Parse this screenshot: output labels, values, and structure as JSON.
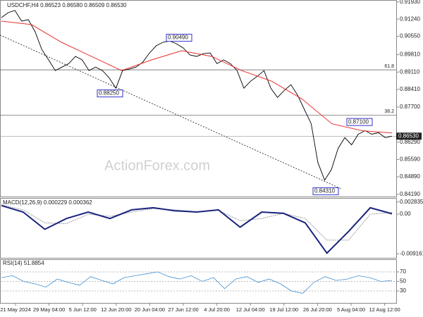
{
  "chart_data": {
    "type": "line",
    "title": "USDCHF,H4 0.86523 0.86580 0.86509 0.86530",
    "watermark": "ActionForex.com",
    "x_labels": [
      "21 May 2024",
      "29 May 04:00",
      "5 Jun 12:00",
      "12 Jun 20:00",
      "20 Jun 04:00",
      "27 Jun 12:00",
      "4 Jul 20:00",
      "12 Jul 04:00",
      "19 Jul 12:00",
      "26 Jul 20:00",
      "5 Aug 04:00",
      "12 Aug 12:00"
    ],
    "ylim": [
      0.841,
      0.9201
    ],
    "yticks": [
      {
        "value": 0.9193,
        "label": "0.91930"
      },
      {
        "value": 0.9124,
        "label": "0.91240"
      },
      {
        "value": 0.9055,
        "label": "0.90550"
      },
      {
        "value": 0.8981,
        "label": "0.89810"
      },
      {
        "value": 0.8911,
        "label": "0.89110"
      },
      {
        "value": 0.8841,
        "label": "0.88410"
      },
      {
        "value": 0.877,
        "label": "0.87700"
      },
      {
        "value": 0.8629,
        "label": "0.86290"
      },
      {
        "value": 0.8559,
        "label": "0.85590"
      },
      {
        "value": 0.8489,
        "label": "0.84890"
      },
      {
        "value": 0.8419,
        "label": "0.84190"
      }
    ],
    "series": [
      {
        "name": "USDCHF",
        "color": "#000000",
        "values": [
          0.913,
          0.915,
          0.9159,
          0.9116,
          0.9122,
          0.9073,
          0.9002,
          0.896,
          0.8917,
          0.8931,
          0.8945,
          0.8974,
          0.896,
          0.8917,
          0.8931,
          0.8917,
          0.8888,
          0.8846,
          0.8917,
          0.8923,
          0.8931,
          0.8951,
          0.8988,
          0.9017,
          0.9031,
          0.9036,
          0.9025,
          0.9008,
          0.898,
          0.8974,
          0.8985,
          0.8988,
          0.8945,
          0.896,
          0.8945,
          0.8917,
          0.8846,
          0.8874,
          0.8894,
          0.8917,
          0.8846,
          0.8809,
          0.8837,
          0.886,
          0.8817,
          0.876,
          0.8703,
          0.8547,
          0.8476,
          0.8518,
          0.8604,
          0.8647,
          0.8618,
          0.8661,
          0.8675,
          0.8661,
          0.8667,
          0.8647,
          0.8653
        ]
      },
      {
        "name": "MA",
        "color": "#e8312f",
        "values": [
          0.9116,
          0.9102,
          0.9031,
          0.8974,
          0.8917,
          0.896,
          0.8997,
          0.8974,
          0.8917,
          0.8874,
          0.8803,
          0.8703,
          0.8675,
          0.8666
        ]
      }
    ],
    "levels": [
      {
        "label": "61.8",
        "value": 0.892
      },
      {
        "label": "38.2",
        "value": 0.8738
      }
    ],
    "current": {
      "value": 0.8653,
      "label": "0.86530"
    },
    "trendline": [
      0.906,
      0.844
    ],
    "annotations": [
      {
        "value": 0.8825,
        "label": "0.88250"
      },
      {
        "value": 0.9049,
        "label": "0.90490"
      },
      {
        "value": 0.871,
        "label": "0.87100"
      },
      {
        "value": 0.8431,
        "label": "0.84310"
      }
    ],
    "macd": {
      "title": "MACD(12,26,9) 0.000229 0.000362",
      "ylim": [
        -0.0101,
        0.0036
      ],
      "yticks": [
        0.002835,
        {
          "value": 0,
          "label": "0.00"
        },
        -0.009161
      ],
      "series": [
        {
          "name": "MACD",
          "color": "#1a237e",
          "values": [
            0.002,
            0.0005,
            -0.0035,
            -0.001,
            0.0005,
            -0.001,
            0.001,
            0.0015,
            0.0008,
            0.0005,
            0.001,
            -0.003,
            0.0005,
            0.0002,
            -0.002,
            -0.009,
            -0.004,
            0.0015,
            0.0001
          ]
        },
        {
          "name": "Signal",
          "color": "#9e9e9e",
          "values": [
            0.0022,
            0.001,
            -0.002,
            -0.0022,
            0,
            -0.0005,
            0.0005,
            0.0013,
            0.001,
            0.0006,
            0.0009,
            -0.0015,
            -0.001,
            0.0002,
            -0.001,
            -0.006,
            -0.006,
            0,
            0.0004
          ]
        }
      ]
    },
    "rsi": {
      "title": "RSI(14) 51.8854",
      "ylim": [
        5,
        95
      ],
      "yticks": [
        70,
        50,
        30
      ],
      "series": [
        {
          "name": "RSI",
          "color": "#3f8fd2",
          "values": [
            58,
            62,
            50,
            45,
            38,
            55,
            48,
            42,
            60,
            52,
            45,
            58,
            62,
            66,
            70,
            60,
            55,
            62,
            50,
            58,
            35,
            55,
            60,
            48,
            55,
            45,
            30,
            25,
            48,
            60,
            52,
            55,
            62,
            58,
            50,
            52
          ]
        }
      ]
    }
  }
}
